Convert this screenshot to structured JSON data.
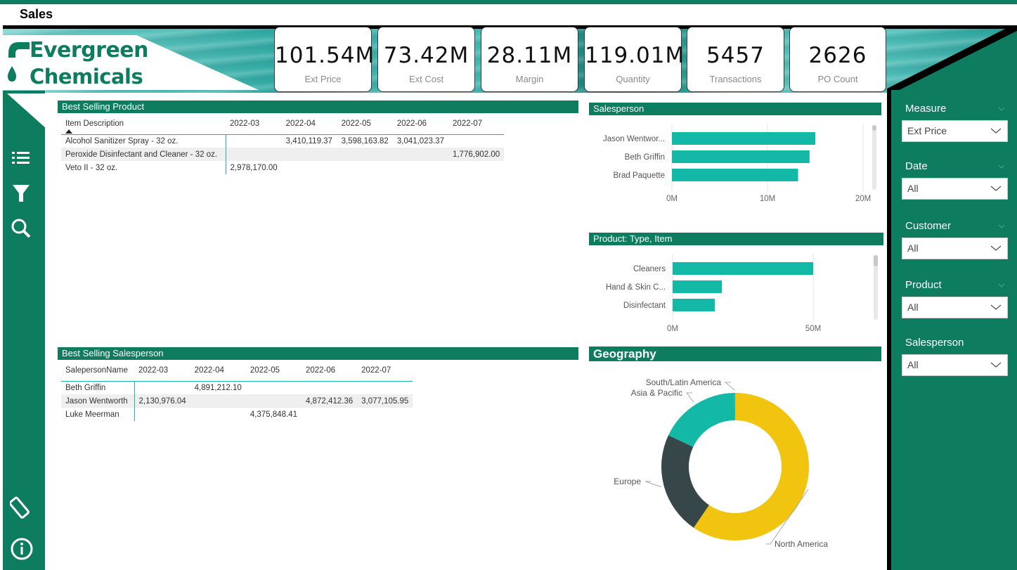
{
  "page": {
    "title": "Sales"
  },
  "brand": {
    "name_line1": "Evergreen",
    "name_line2": "Chemicals",
    "primary_color": "#0e7d5f",
    "accent_color": "#14b8a6"
  },
  "kpis": [
    {
      "value": "101.54M",
      "label": "Ext Price"
    },
    {
      "value": "73.42M",
      "label": "Ext Cost"
    },
    {
      "value": "28.11M",
      "label": "Margin"
    },
    {
      "value": "119.01M",
      "label": "Quantity"
    },
    {
      "value": "5457",
      "label": "Transactions"
    },
    {
      "value": "2626",
      "label": "PO Count"
    }
  ],
  "nav": {
    "icons": [
      "list-icon",
      "filter-icon",
      "search-icon",
      "eraser-icon",
      "info-icon"
    ]
  },
  "best_product": {
    "title": "Best Selling Product",
    "columns": [
      "Item Description",
      "2022-03",
      "2022-04",
      "2022-05",
      "2022-06",
      "2022-07"
    ],
    "rows": [
      [
        "Alcohol Sanitizer Spray - 32 oz.",
        "",
        "3,410,119.37",
        "3,598,163.82",
        "3,041,023.37",
        ""
      ],
      [
        "Peroxide Disinfectant and Cleaner - 32 oz.",
        "",
        "",
        "",
        "",
        "1,776,902.00"
      ],
      [
        "Veto II - 32 oz.",
        "2,978,170.00",
        "",
        "",
        "",
        ""
      ]
    ]
  },
  "best_salesperson": {
    "title": "Best Selling Salesperson",
    "columns": [
      "SalepersonName",
      "2022-03",
      "2022-04",
      "2022-05",
      "2022-06",
      "2022-07"
    ],
    "rows": [
      [
        "Beth Griffin",
        "",
        "4,891,212.10",
        "",
        "",
        ""
      ],
      [
        "Jason Wentworth",
        "2,130,976.04",
        "",
        "",
        "4,872,412.36",
        "3,077,105.95"
      ],
      [
        "Luke Meerman",
        "",
        "",
        "4,375,848.41",
        "",
        ""
      ]
    ]
  },
  "chart_data": [
    {
      "type": "bar",
      "orientation": "horizontal",
      "title": "Salesperson",
      "categories": [
        "Jason Wentwor...",
        "Beth Griffin",
        "Brad Paquette"
      ],
      "values": [
        15.0,
        14.4,
        13.2
      ],
      "unit": "M",
      "xlim": [
        0,
        20
      ],
      "ticks": [
        "0M",
        "10M",
        "20M"
      ],
      "grid": true,
      "color": "#14b8a6"
    },
    {
      "type": "bar",
      "orientation": "horizontal",
      "title": "Product: Type, Item",
      "categories": [
        "Cleaners",
        "Hand & Skin C...",
        "Disinfectant"
      ],
      "values": [
        50,
        17.5,
        15
      ],
      "unit": "M",
      "xlim": [
        0,
        57
      ],
      "ticks": [
        "0M",
        "50M"
      ],
      "grid": true,
      "color": "#14b8a6"
    },
    {
      "type": "pie",
      "donut": true,
      "title": "Geography",
      "categories": [
        "North America",
        "Europe",
        "Asia & Pacific",
        "South/Latin America"
      ],
      "values": [
        59.5,
        22.5,
        17.8,
        0.2
      ],
      "colors": [
        "#f1c40f",
        "#374649",
        "#14b8a6",
        "#14b8a6"
      ]
    }
  ],
  "slicers": [
    {
      "label": "Measure",
      "value": "Ext Price"
    },
    {
      "label": "Date",
      "value": "All"
    },
    {
      "label": "Customer",
      "value": "All"
    },
    {
      "label": "Product",
      "value": "All"
    },
    {
      "label": "Salesperson",
      "value": "All"
    }
  ]
}
